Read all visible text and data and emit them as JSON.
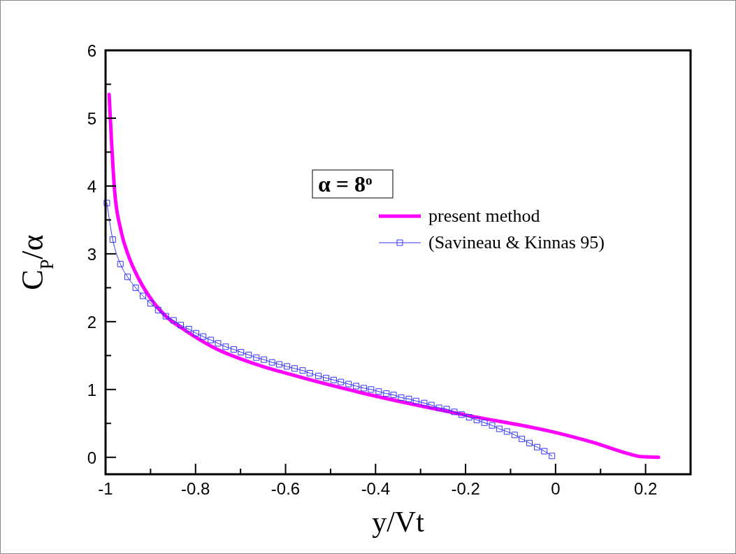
{
  "chart_data": {
    "type": "line",
    "xlabel": "y/Vt",
    "ylabel": "C$_{P}$/α",
    "legend_title": "α = 8$^{o}$",
    "legend": "top right",
    "xlim": [
      -1,
      0.3
    ],
    "ylim": [
      -0.25,
      6
    ],
    "xticks": [
      -1,
      {
        "value": -0.9,
        "label": null
      },
      -0.8,
      {
        "value": -0.7,
        "label": null
      },
      -0.6,
      {
        "value": -0.5,
        "label": null
      },
      -0.4,
      {
        "value": -0.3,
        "label": null
      },
      -0.2,
      {
        "value": -0.1,
        "label": null
      },
      0,
      {
        "value": 0.1,
        "label": null
      },
      0.2
    ],
    "yticks": [
      0,
      {
        "value": 0.5,
        "label": null
      },
      1,
      {
        "value": 1.5,
        "label": null
      },
      2,
      {
        "value": 2.5,
        "label": null
      },
      3,
      {
        "value": 3.5,
        "label": null
      },
      4,
      {
        "value": 4.5,
        "label": null
      },
      5,
      {
        "value": 5.5,
        "label": null
      },
      6
    ],
    "grid": false,
    "series": [
      {
        "name": "present method",
        "color": "#ff00ff",
        "marker": "none",
        "x": [
          -0.992,
          -0.98,
          -0.966,
          -0.949,
          -0.926,
          -0.894,
          -0.866,
          -0.825,
          -0.76,
          -0.665,
          -0.577,
          -0.405,
          -0.198,
          -0.003,
          0.083,
          0.169,
          0.19,
          0.229
        ],
        "values": [
          5.35,
          3.94,
          3.35,
          2.97,
          2.63,
          2.29,
          2.08,
          1.88,
          1.62,
          1.37,
          1.2,
          0.91,
          0.62,
          0.37,
          0.22,
          0.04,
          0.01,
          0.0
        ]
      },
      {
        "name": "(Savineau & Kinnas 95)",
        "color": "#3333ff",
        "marker": "square",
        "x": [
          -0.997,
          -0.984,
          -0.967,
          -0.951,
          -0.933,
          -0.917,
          -0.9,
          -0.883,
          -0.866,
          -0.849,
          -0.833,
          -0.815,
          -0.799,
          -0.783,
          -0.766,
          -0.75,
          -0.733,
          -0.715,
          -0.699,
          -0.682,
          -0.665,
          -0.648,
          -0.63,
          -0.614,
          -0.597,
          -0.58,
          -0.562,
          -0.546,
          -0.527,
          -0.51,
          -0.493,
          -0.477,
          -0.46,
          -0.443,
          -0.426,
          -0.41,
          -0.393,
          -0.376,
          -0.36,
          -0.343,
          -0.326,
          -0.31,
          -0.292,
          -0.276,
          -0.259,
          -0.242,
          -0.225,
          -0.209,
          -0.192,
          -0.175,
          -0.158,
          -0.141,
          -0.125,
          -0.108,
          -0.091,
          -0.075,
          -0.058,
          -0.041,
          -0.025,
          -0.008
        ],
        "values": [
          3.75,
          3.21,
          2.85,
          2.66,
          2.5,
          2.38,
          2.27,
          2.17,
          2.08,
          2.02,
          1.95,
          1.89,
          1.83,
          1.78,
          1.73,
          1.68,
          1.63,
          1.59,
          1.55,
          1.51,
          1.47,
          1.44,
          1.4,
          1.37,
          1.34,
          1.31,
          1.28,
          1.24,
          1.2,
          1.17,
          1.14,
          1.11,
          1.08,
          1.05,
          1.02,
          1.0,
          0.97,
          0.94,
          0.92,
          0.88,
          0.86,
          0.83,
          0.8,
          0.77,
          0.73,
          0.71,
          0.67,
          0.63,
          0.59,
          0.55,
          0.51,
          0.47,
          0.42,
          0.38,
          0.33,
          0.27,
          0.21,
          0.15,
          0.09,
          0.02
        ]
      }
    ]
  }
}
